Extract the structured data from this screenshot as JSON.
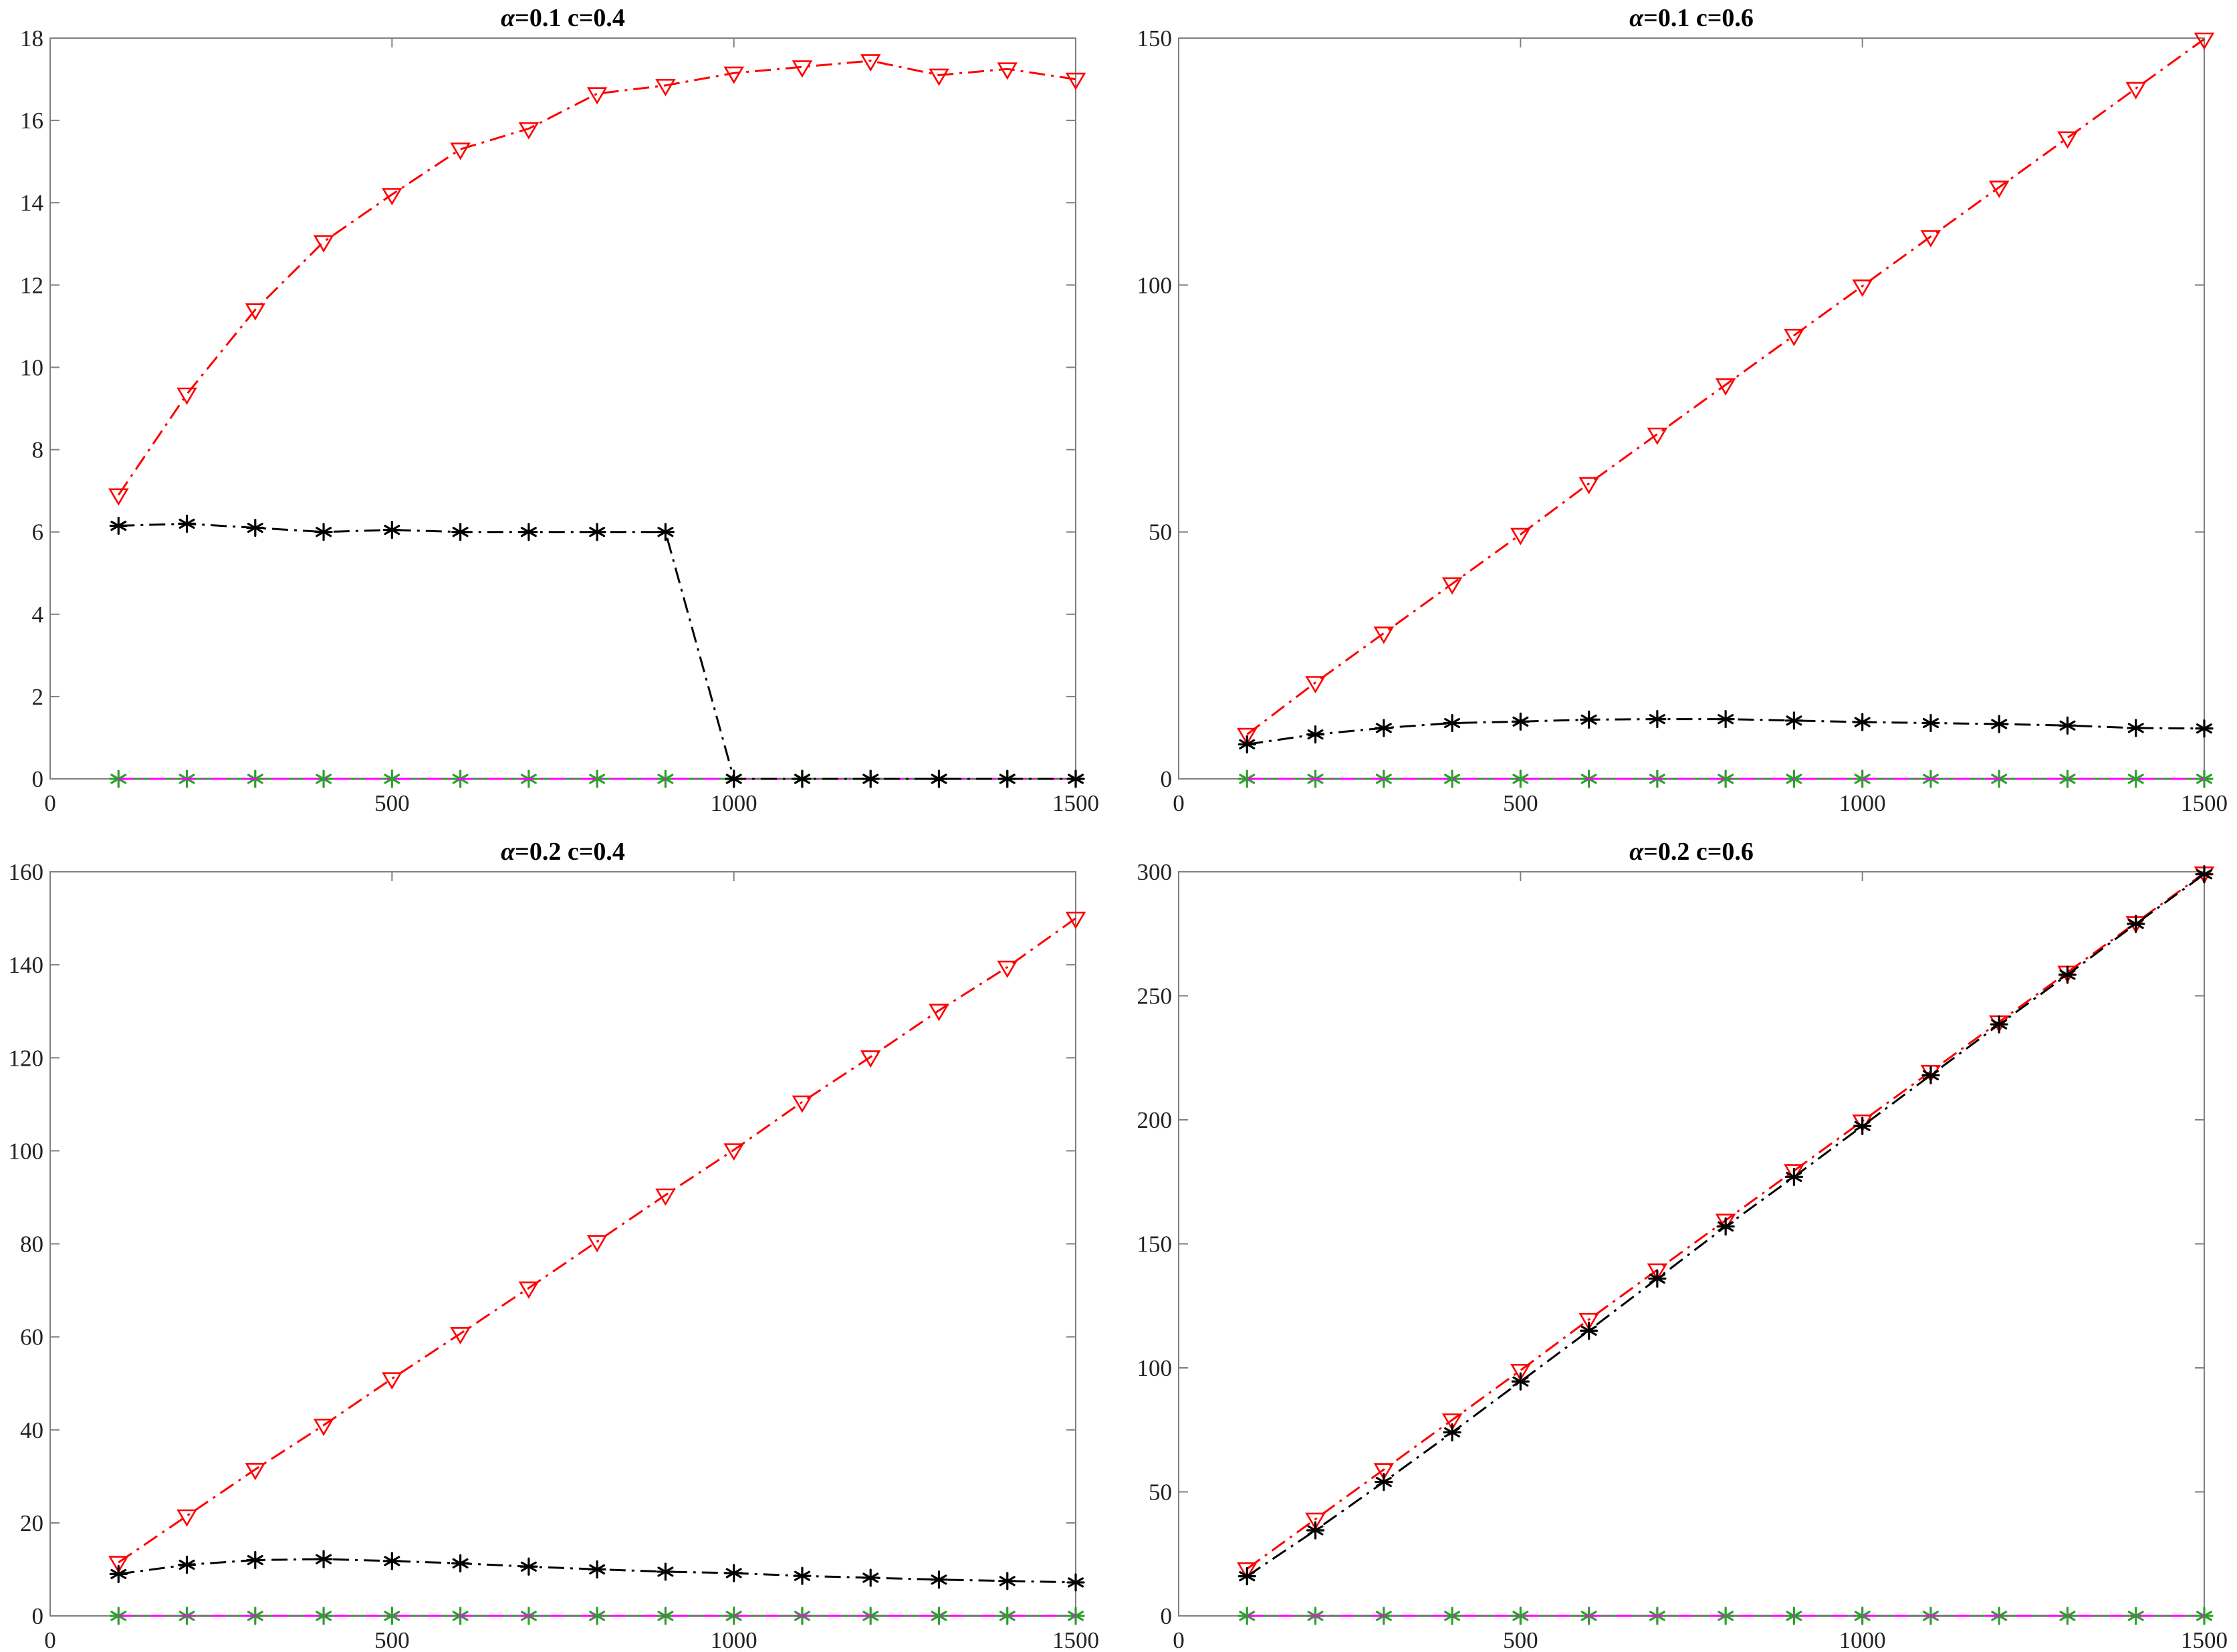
{
  "colors": {
    "red_series": "#ff0000",
    "black_series": "#000000",
    "green_series": "#2ca02c",
    "magenta_series": "#ff00ff",
    "axis": "#7f7f7f"
  },
  "chart_data": [
    {
      "type": "line",
      "title_symbol": "α",
      "title_rest": "=0.1 c=0.4",
      "xlim": [
        0,
        1500
      ],
      "ylim": [
        0,
        18
      ],
      "xticks": [
        0,
        500,
        1000,
        1500
      ],
      "yticks": [
        0,
        2,
        4,
        6,
        8,
        10,
        12,
        14,
        16,
        18
      ],
      "x": [
        100,
        200,
        300,
        400,
        500,
        600,
        700,
        800,
        900,
        1000,
        1100,
        1200,
        1300,
        1400,
        1500
      ],
      "series": [
        {
          "marker": "triangle-down",
          "line": "dash-dot",
          "color": "#ff0000",
          "values": [
            6.9,
            9.35,
            11.4,
            13.05,
            14.2,
            15.3,
            15.8,
            16.65,
            16.85,
            17.15,
            17.3,
            17.45,
            17.1,
            17.25,
            17.0
          ]
        },
        {
          "marker": "asterisk",
          "line": "dash-dot",
          "color": "#000000",
          "values": [
            6.15,
            6.2,
            6.1,
            6.0,
            6.05,
            6.0,
            6.0,
            6.0,
            6.0,
            0,
            0,
            0,
            0,
            0,
            0
          ]
        },
        {
          "marker": "asterisk",
          "line": "solid",
          "color": "#2ca02c",
          "values": [
            0,
            0,
            0,
            0,
            0,
            0,
            0,
            0,
            0,
            0,
            0,
            0,
            0,
            0,
            0
          ]
        },
        {
          "marker": "none",
          "line": "dash-dot",
          "color": "#ff00ff",
          "values": [
            0,
            0,
            0,
            0,
            0,
            0,
            0,
            0,
            0,
            0,
            0,
            0,
            0,
            0,
            0
          ]
        }
      ]
    },
    {
      "type": "line",
      "title_symbol": "α",
      "title_rest": "=0.1 c=0.6",
      "xlim": [
        0,
        1500
      ],
      "ylim": [
        0,
        150
      ],
      "xticks": [
        0,
        500,
        1000,
        1500
      ],
      "yticks": [
        0,
        50,
        100,
        150
      ],
      "x": [
        100,
        200,
        300,
        400,
        500,
        600,
        700,
        800,
        900,
        1000,
        1100,
        1200,
        1300,
        1400,
        1500
      ],
      "series": [
        {
          "marker": "triangle-down",
          "line": "dash-dot",
          "color": "#ff0000",
          "values": [
            9,
            19.5,
            29.5,
            39.5,
            49.5,
            59.8,
            69.8,
            79.8,
            89.8,
            99.8,
            109.8,
            119.8,
            129.8,
            139.8,
            149.8
          ]
        },
        {
          "marker": "asterisk",
          "line": "dash-dot",
          "color": "#000000",
          "values": [
            7,
            9,
            10.3,
            11.3,
            11.6,
            12,
            12.1,
            12.1,
            11.8,
            11.5,
            11.3,
            11.1,
            10.8,
            10.3,
            10.2
          ]
        },
        {
          "marker": "asterisk",
          "line": "solid",
          "color": "#2ca02c",
          "values": [
            0,
            0,
            0,
            0,
            0,
            0,
            0,
            0,
            0,
            0,
            0,
            0,
            0,
            0,
            0
          ]
        },
        {
          "marker": "none",
          "line": "dash-dot",
          "color": "#ff00ff",
          "values": [
            0,
            0,
            0,
            0,
            0,
            0,
            0,
            0,
            0,
            0,
            0,
            0,
            0,
            0,
            0
          ]
        }
      ]
    },
    {
      "type": "line",
      "title_symbol": "α",
      "title_rest": "=0.2 c=0.4",
      "xlim": [
        0,
        1500
      ],
      "ylim": [
        0,
        160
      ],
      "xticks": [
        0,
        500,
        1000,
        1500
      ],
      "yticks": [
        0,
        20,
        40,
        60,
        80,
        100,
        120,
        140,
        160
      ],
      "x": [
        100,
        200,
        300,
        400,
        500,
        600,
        700,
        800,
        900,
        1000,
        1100,
        1200,
        1300,
        1400,
        1500
      ],
      "series": [
        {
          "marker": "triangle-down",
          "line": "dash-dot",
          "color": "#ff0000",
          "values": [
            11.5,
            21.5,
            31.5,
            41,
            51,
            60.7,
            70.5,
            80.5,
            90.5,
            100.2,
            110.5,
            120.2,
            130.2,
            139.5,
            150
          ]
        },
        {
          "marker": "asterisk",
          "line": "dash-dot",
          "color": "#000000",
          "values": [
            9,
            11,
            12,
            12.2,
            11.8,
            11.3,
            10.6,
            10,
            9.5,
            9.2,
            8.6,
            8.2,
            7.8,
            7.5,
            7.2
          ]
        },
        {
          "marker": "asterisk",
          "line": "solid",
          "color": "#2ca02c",
          "values": [
            0,
            0,
            0,
            0,
            0,
            0,
            0,
            0,
            0,
            0,
            0,
            0,
            0,
            0,
            0
          ]
        },
        {
          "marker": "none",
          "line": "dash-dot",
          "color": "#ff00ff",
          "values": [
            0,
            0,
            0,
            0,
            0,
            0,
            0,
            0,
            0,
            0,
            0,
            0,
            0,
            0,
            0
          ]
        }
      ]
    },
    {
      "type": "line",
      "title_symbol": "α",
      "title_rest": "=0.2 c=0.6",
      "xlim": [
        0,
        1500
      ],
      "ylim": [
        0,
        300
      ],
      "xticks": [
        0,
        500,
        1000,
        1500
      ],
      "yticks": [
        0,
        50,
        100,
        150,
        200,
        250,
        300
      ],
      "x": [
        100,
        200,
        300,
        400,
        500,
        600,
        700,
        800,
        900,
        1000,
        1100,
        1200,
        1300,
        1400,
        1500
      ],
      "series": [
        {
          "marker": "triangle-down",
          "line": "dash-dot",
          "color": "#ff0000",
          "values": [
            19,
            39,
            59,
            79,
            99,
            119.5,
            139.5,
            159.5,
            179.5,
            199.5,
            219.5,
            239.5,
            259.5,
            279.5,
            299.5
          ]
        },
        {
          "marker": "asterisk",
          "line": "dash-dot",
          "color": "#000000",
          "values": [
            16,
            34.5,
            54,
            74,
            94.5,
            115,
            136,
            157,
            177,
            197.5,
            218,
            238.5,
            258.5,
            279,
            299
          ]
        },
        {
          "marker": "asterisk",
          "line": "solid",
          "color": "#2ca02c",
          "values": [
            0,
            0,
            0,
            0,
            0,
            0,
            0,
            0,
            0,
            0,
            0,
            0,
            0,
            0,
            0
          ]
        },
        {
          "marker": "none",
          "line": "dash-dot",
          "color": "#ff00ff",
          "values": [
            0,
            0,
            0,
            0,
            0,
            0,
            0,
            0,
            0,
            0,
            0,
            0,
            0,
            0,
            0
          ]
        }
      ]
    }
  ]
}
